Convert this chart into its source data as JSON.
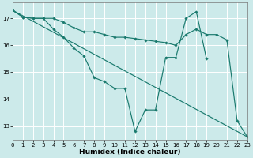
{
  "title": "",
  "xlabel": "Humidex (Indice chaleur)",
  "background_color": "#cceaea",
  "grid_color": "#ffffff",
  "line_color": "#1a7a6e",
  "lines": [
    {
      "x": [
        0,
        1,
        2,
        3,
        4,
        5,
        6,
        7,
        8,
        9,
        10,
        11,
        12,
        13,
        14,
        15,
        16,
        17,
        18,
        19
      ],
      "y": [
        17.3,
        17.05,
        17.0,
        17.0,
        16.6,
        16.3,
        15.9,
        15.6,
        14.8,
        14.65,
        14.4,
        14.4,
        12.8,
        13.6,
        13.6,
        15.55,
        15.55,
        17.0,
        17.25,
        15.5
      ]
    },
    {
      "x": [
        0,
        1,
        2,
        3,
        4,
        5,
        6,
        7,
        8,
        9,
        10,
        11,
        12,
        13,
        14,
        15,
        16,
        17,
        18,
        19,
        20,
        21,
        22,
        23
      ],
      "y": [
        17.3,
        17.05,
        17.0,
        17.0,
        17.0,
        16.85,
        16.65,
        16.5,
        16.5,
        16.4,
        16.3,
        16.3,
        16.25,
        16.2,
        16.15,
        16.1,
        16.0,
        16.4,
        16.6,
        16.4,
        16.4,
        16.2,
        13.2,
        12.6
      ]
    },
    {
      "x": [
        0,
        23
      ],
      "y": [
        17.3,
        12.6
      ]
    }
  ],
  "xlim": [
    0,
    23
  ],
  "ylim": [
    12.5,
    17.6
  ],
  "yticks": [
    13,
    14,
    15,
    16,
    17
  ],
  "xticks": [
    0,
    1,
    2,
    3,
    4,
    5,
    6,
    7,
    8,
    9,
    10,
    11,
    12,
    13,
    14,
    15,
    16,
    17,
    18,
    19,
    20,
    21,
    22,
    23
  ],
  "tick_fontsize": 5.0,
  "label_fontsize": 6.5,
  "marker": "D",
  "markersize": 1.8,
  "linewidth": 0.85
}
